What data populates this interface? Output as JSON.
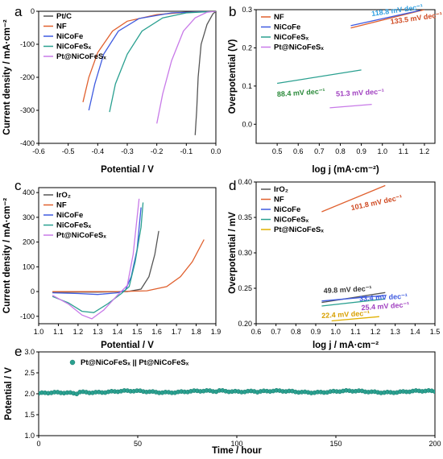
{
  "chart_data": [
    {
      "id": "a",
      "panel_label": "a",
      "type": "line",
      "xlabel": "Potential / V",
      "ylabel": "Current density / mA·cm⁻²",
      "xlim": [
        -0.6,
        0.0
      ],
      "ylim": [
        -400,
        0
      ],
      "xticks": [
        "-0.6",
        "-0.5",
        "-0.4",
        "-0.3",
        "-0.2",
        "-0.1",
        "0.0"
      ],
      "yticks": [
        "0",
        "-100",
        "-200",
        "-300",
        "-400"
      ],
      "legend_position": "top-right",
      "series": [
        {
          "name": "Pt/C",
          "color": "#555555",
          "points": [
            [
              -0.07,
              -375
            ],
            [
              -0.065,
              -300
            ],
            [
              -0.06,
              -200
            ],
            [
              -0.05,
              -100
            ],
            [
              -0.03,
              -40
            ],
            [
              -0.01,
              -8
            ],
            [
              0,
              0
            ]
          ]
        },
        {
          "name": "NF",
          "color": "#e0602e",
          "points": [
            [
              -0.45,
              -275
            ],
            [
              -0.43,
              -200
            ],
            [
              -0.4,
              -125
            ],
            [
              -0.35,
              -60
            ],
            [
              -0.3,
              -30
            ],
            [
              -0.2,
              -10
            ],
            [
              -0.1,
              -3
            ],
            [
              0,
              0
            ]
          ]
        },
        {
          "name": "NiCoFe",
          "color": "#3f5be0",
          "points": [
            [
              -0.43,
              -300
            ],
            [
              -0.41,
              -220
            ],
            [
              -0.38,
              -130
            ],
            [
              -0.33,
              -60
            ],
            [
              -0.26,
              -22
            ],
            [
              -0.15,
              -5
            ],
            [
              0,
              0
            ]
          ]
        },
        {
          "name": "NiCoFeSₓ",
          "color": "#2aa090",
          "points": [
            [
              -0.36,
              -305
            ],
            [
              -0.34,
              -220
            ],
            [
              -0.3,
              -130
            ],
            [
              -0.25,
              -60
            ],
            [
              -0.18,
              -20
            ],
            [
              -0.1,
              -5
            ],
            [
              0,
              0
            ]
          ]
        },
        {
          "name": "Pt@NiCoFeSₓ",
          "color": "#c87ae8",
          "points": [
            [
              -0.2,
              -340
            ],
            [
              -0.18,
              -250
            ],
            [
              -0.15,
              -150
            ],
            [
              -0.11,
              -60
            ],
            [
              -0.07,
              -20
            ],
            [
              -0.03,
              -3
            ],
            [
              0,
              0
            ]
          ]
        }
      ]
    },
    {
      "id": "b",
      "panel_label": "b",
      "type": "line",
      "xlabel": "log j (mA·cm⁻²)",
      "ylabel": "Overpotential (V)",
      "xlim": [
        0.4,
        1.25
      ],
      "ylim": [
        -0.05,
        0.3
      ],
      "xticks": [
        "0.5",
        "0.6",
        "0.7",
        "0.8",
        "0.9",
        "1.0",
        "1.1",
        "1.2"
      ],
      "yticks": [
        "0.0",
        "0.1",
        "0.2",
        "0.3"
      ],
      "legend_position": "top-left",
      "series": [
        {
          "name": "NF",
          "color": "#e0602e",
          "points": [
            [
              0.85,
              0.252
            ],
            [
              1.2,
              0.3
            ]
          ],
          "annotation": "133.5 mV dec⁻¹",
          "ann_color": "#d04a22"
        },
        {
          "name": "NiCoFe",
          "color": "#3f5be0",
          "points": [
            [
              0.85,
              0.258
            ],
            [
              1.18,
              0.298
            ]
          ],
          "annotation": "118.8 mV dec⁻¹",
          "ann_color": "#2f9fe0"
        },
        {
          "name": "NiCoFeSₓ",
          "color": "#2aa090",
          "points": [
            [
              0.5,
              0.107
            ],
            [
              0.9,
              0.142
            ]
          ],
          "annotation": "88.4 mV dec⁻¹",
          "ann_color": "#2a8a3a"
        },
        {
          "name": "Pt@NiCoFeSₓ",
          "color": "#c87ae8",
          "points": [
            [
              0.75,
              0.043
            ],
            [
              0.95,
              0.052
            ]
          ],
          "annotation": "51.3 mV dec⁻¹",
          "ann_color": "#a040c0"
        }
      ]
    },
    {
      "id": "c",
      "panel_label": "c",
      "type": "line",
      "xlabel": "Potential / V",
      "ylabel": "Current density / mA·cm⁻²",
      "xlim": [
        1.0,
        1.9
      ],
      "ylim": [
        -130,
        420
      ],
      "xticks": [
        "1.0",
        "1.1",
        "1.2",
        "1.3",
        "1.4",
        "1.5",
        "1.6",
        "1.7",
        "1.8",
        "1.9"
      ],
      "yticks": [
        "-100",
        "0",
        "100",
        "200",
        "300",
        "400"
      ],
      "legend_position": "top-left",
      "series": [
        {
          "name": "IrO₂",
          "color": "#555555",
          "points": [
            [
              1.07,
              -2
            ],
            [
              1.3,
              -2
            ],
            [
              1.45,
              0
            ],
            [
              1.52,
              10
            ],
            [
              1.56,
              60
            ],
            [
              1.59,
              150
            ],
            [
              1.61,
              245
            ]
          ]
        },
        {
          "name": "NF",
          "color": "#e0602e",
          "points": [
            [
              1.07,
              0
            ],
            [
              1.4,
              0
            ],
            [
              1.55,
              3
            ],
            [
              1.65,
              20
            ],
            [
              1.72,
              60
            ],
            [
              1.78,
              120
            ],
            [
              1.84,
              210
            ]
          ]
        },
        {
          "name": "NiCoFe",
          "color": "#3f5be0",
          "points": [
            [
              1.07,
              -5
            ],
            [
              1.2,
              -8
            ],
            [
              1.3,
              -12
            ],
            [
              1.4,
              -5
            ],
            [
              1.44,
              5
            ],
            [
              1.47,
              60
            ],
            [
              1.5,
              170
            ],
            [
              1.52,
              340
            ]
          ]
        },
        {
          "name": "NiCoFeSₓ",
          "color": "#2aa090",
          "points": [
            [
              1.07,
              -20
            ],
            [
              1.15,
              -45
            ],
            [
              1.22,
              -80
            ],
            [
              1.28,
              -85
            ],
            [
              1.35,
              -50
            ],
            [
              1.42,
              -8
            ],
            [
              1.46,
              20
            ],
            [
              1.49,
              120
            ],
            [
              1.52,
              260
            ],
            [
              1.53,
              360
            ]
          ]
        },
        {
          "name": "Pt@NiCoFeSₓ",
          "color": "#c87ae8",
          "points": [
            [
              1.07,
              -15
            ],
            [
              1.15,
              -50
            ],
            [
              1.22,
              -95
            ],
            [
              1.27,
              -110
            ],
            [
              1.33,
              -75
            ],
            [
              1.4,
              -15
            ],
            [
              1.45,
              25
            ],
            [
              1.48,
              150
            ],
            [
              1.51,
              375
            ]
          ]
        }
      ]
    },
    {
      "id": "d",
      "panel_label": "d",
      "type": "line",
      "xlabel": "log j / mA·cm⁻²",
      "ylabel": "Overpotential / mV",
      "xlim": [
        0.6,
        1.5
      ],
      "ylim": [
        0.2,
        0.4
      ],
      "xticks": [
        "0.6",
        "0.7",
        "0.8",
        "0.9",
        "1.0",
        "1.1",
        "1.2",
        "1.3",
        "1.4",
        "1.5"
      ],
      "yticks": [
        "0.20",
        "0.25",
        "0.30",
        "0.35",
        "0.40"
      ],
      "legend_position": "top-left",
      "series": [
        {
          "name": "IrO₂",
          "color": "#555555",
          "points": [
            [
              0.93,
              0.23
            ],
            [
              1.25,
              0.244
            ]
          ],
          "annotation": "49.8 mV dec⁻¹",
          "ann_color": "#333333"
        },
        {
          "name": "NF",
          "color": "#e0602e",
          "points": [
            [
              0.93,
              0.358
            ],
            [
              1.25,
              0.395
            ]
          ],
          "annotation": "101.8 mV dec⁻¹",
          "ann_color": "#d04a22"
        },
        {
          "name": "NiCoFe",
          "color": "#3f5be0",
          "points": [
            [
              0.93,
              0.232
            ],
            [
              1.25,
              0.24
            ]
          ],
          "annotation": "33.4 mV dec⁻¹",
          "ann_color": "#3f5be0"
        },
        {
          "name": "NiCoFeSₓ",
          "color": "#2aa090",
          "points": [
            [
              0.93,
              0.225
            ],
            [
              1.25,
              0.235
            ]
          ],
          "annotation": "",
          "ann_color": "#2aa090"
        },
        {
          "name": "Pt@NiCoFeSₓ",
          "color": "#e0b000",
          "points": [
            [
              0.98,
              0.204
            ],
            [
              1.22,
              0.21
            ]
          ],
          "annotation": "22.4 mV dec⁻¹",
          "ann_color": "#d8a000"
        }
      ],
      "extra_annotations": [
        {
          "text": "25.4 mV dec⁻¹",
          "color": "#a040c0"
        }
      ]
    },
    {
      "id": "e",
      "panel_label": "e",
      "type": "scatter",
      "xlabel": "Time / hour",
      "ylabel": "Potential / V",
      "xlim": [
        0,
        200
      ],
      "ylim": [
        1.0,
        3.0
      ],
      "xticks": [
        "0",
        "50",
        "100",
        "150",
        "200"
      ],
      "yticks": [
        "1.0",
        "1.5",
        "2.0",
        "2.5",
        "3.0"
      ],
      "legend_position": "top-left",
      "series": [
        {
          "name": "Pt@NiCoFeSₓ || Pt@NiCoFeSₓ",
          "color": "#2aa090",
          "y_mean": 2.05,
          "x_start": 0,
          "x_end": 200
        }
      ]
    }
  ]
}
